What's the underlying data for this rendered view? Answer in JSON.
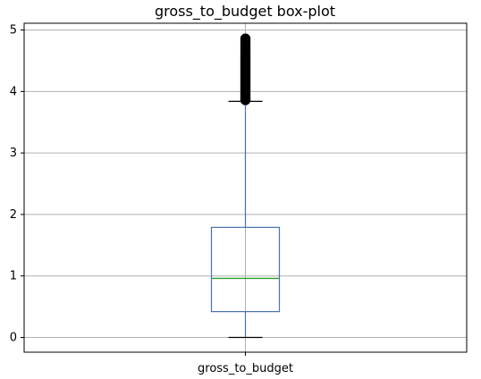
{
  "chart_data": {
    "type": "boxplot",
    "title": "gross_to_budget box-plot",
    "xlabel": "",
    "ylabel": "",
    "categories": [
      "gross_to_budget"
    ],
    "ylim": [
      -0.24,
      5.11
    ],
    "yticks": [
      0,
      1,
      2,
      3,
      4,
      5
    ],
    "grid": true,
    "legend": "none",
    "series": [
      {
        "q1": 0.42,
        "median": 0.96,
        "q3": 1.79,
        "whisker_low": 0.0,
        "whisker_high": 3.84,
        "outliers": [
          3.86,
          3.88,
          3.9,
          3.93,
          3.96,
          3.99,
          4.02,
          4.05,
          4.08,
          4.11,
          4.14,
          4.17,
          4.2,
          4.23,
          4.26,
          4.29,
          4.32,
          4.35,
          4.38,
          4.41,
          4.44,
          4.47,
          4.5,
          4.53,
          4.56,
          4.59,
          4.62,
          4.66,
          4.7,
          4.74,
          4.78,
          4.82,
          4.86
        ]
      }
    ],
    "colors": {
      "box": "#4a72b0",
      "median": "#2ca02c",
      "whisker_cap": "#000000",
      "outlier": "#000000",
      "grid": "#b0b0b0",
      "axis": "#000000"
    }
  }
}
